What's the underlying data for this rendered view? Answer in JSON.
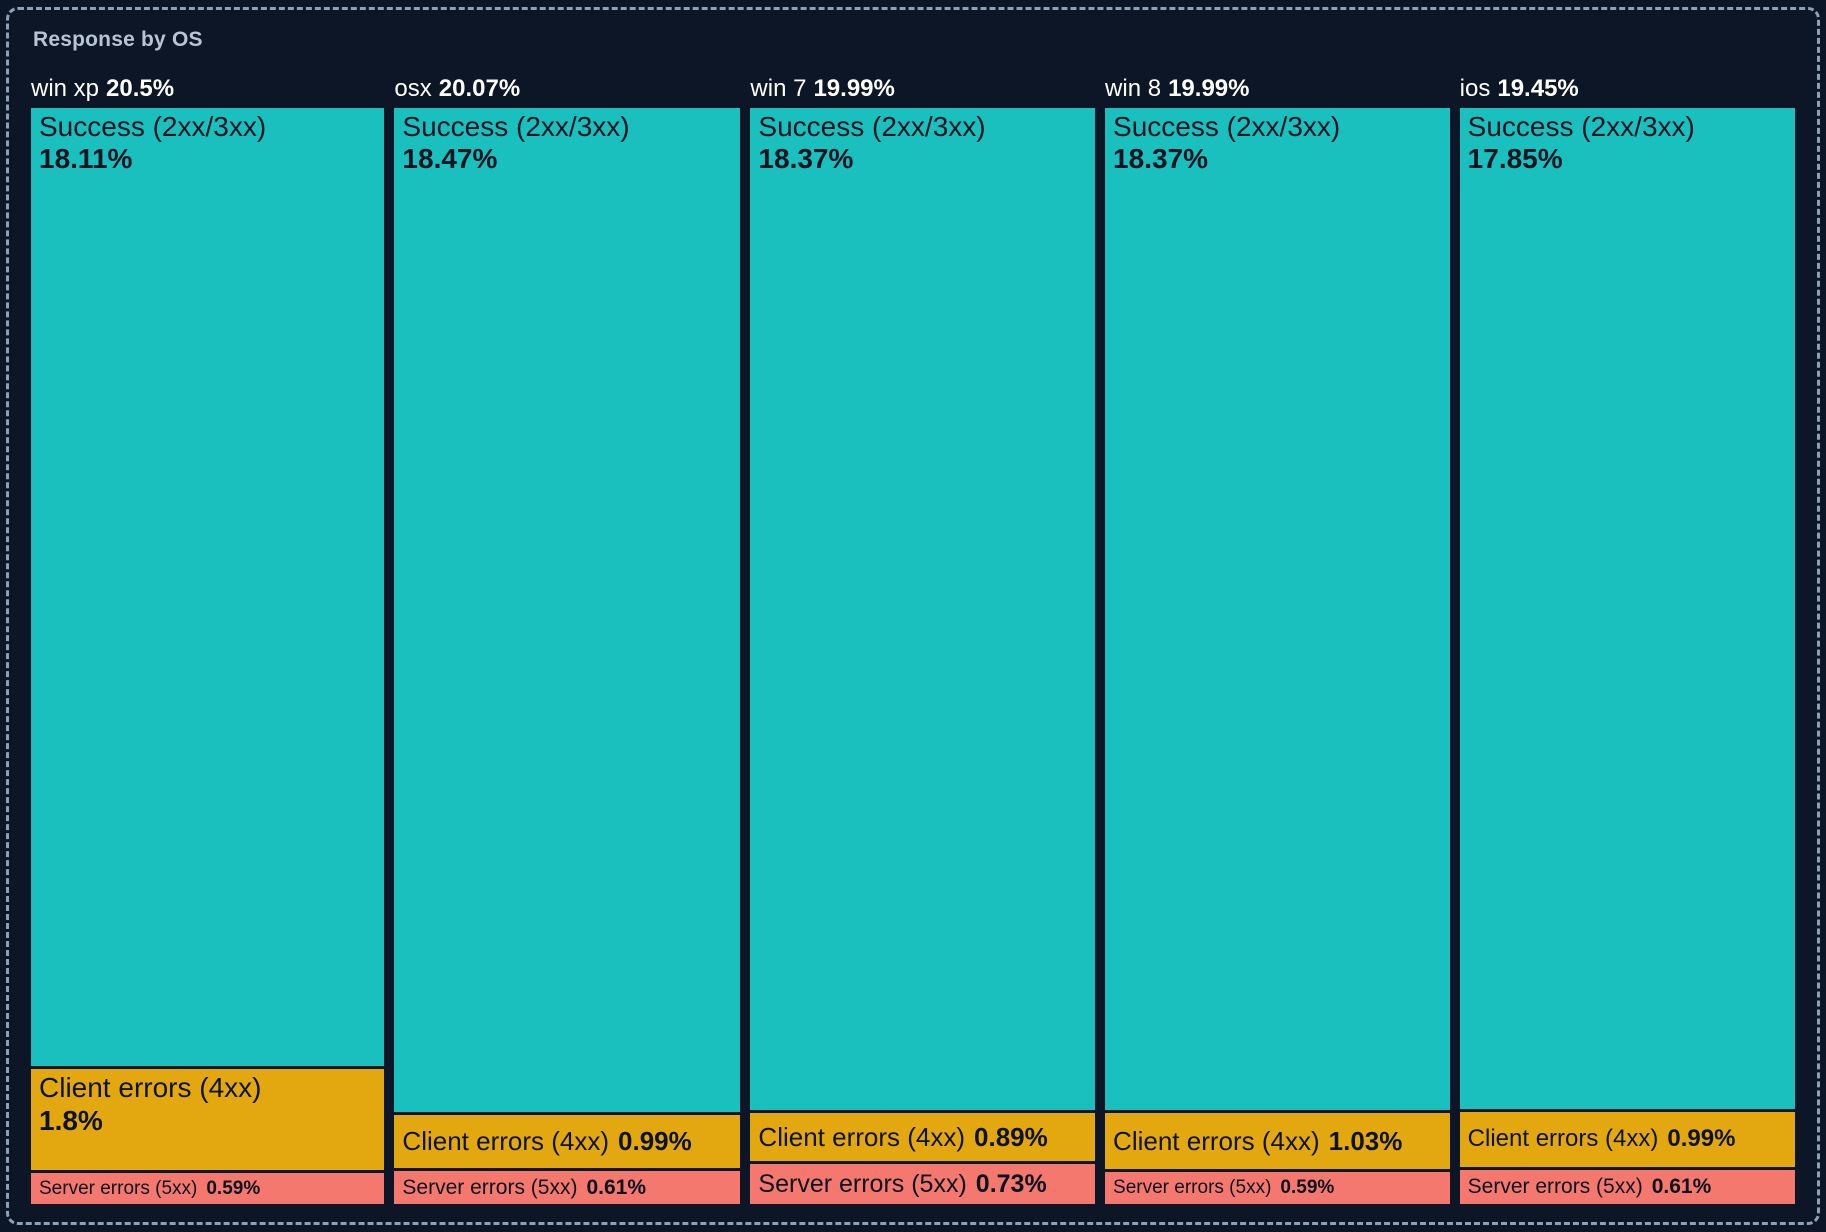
{
  "panel": {
    "title": "Response by OS"
  },
  "chart_data": {
    "type": "treemap",
    "title": "Response by OS",
    "unit": "%",
    "colors": {
      "success": "#19c0be",
      "client": "#e3a70f",
      "server": "#f4786e"
    },
    "background": "#0d1626",
    "border_color": "#8da0b6",
    "columns": [
      {
        "os": "win xp",
        "total": 20.5,
        "total_label": "20.5%",
        "segments": [
          {
            "kind": "success",
            "label": "Success (2xx/3xx)",
            "value": 18.11,
            "value_label": "18.11%"
          },
          {
            "kind": "client",
            "label": "Client errors (4xx)",
            "value": 1.8,
            "value_label": "1.8%"
          },
          {
            "kind": "server",
            "label": "Server errors (5xx)",
            "value": 0.59,
            "value_label": "0.59%"
          }
        ]
      },
      {
        "os": "osx",
        "total": 20.07,
        "total_label": "20.07%",
        "segments": [
          {
            "kind": "success",
            "label": "Success (2xx/3xx)",
            "value": 18.47,
            "value_label": "18.47%"
          },
          {
            "kind": "client",
            "label": "Client errors (4xx)",
            "value": 0.99,
            "value_label": "0.99%"
          },
          {
            "kind": "server",
            "label": "Server errors (5xx)",
            "value": 0.61,
            "value_label": "0.61%"
          }
        ]
      },
      {
        "os": "win 7",
        "total": 19.99,
        "total_label": "19.99%",
        "segments": [
          {
            "kind": "success",
            "label": "Success (2xx/3xx)",
            "value": 18.37,
            "value_label": "18.37%"
          },
          {
            "kind": "client",
            "label": "Client errors (4xx)",
            "value": 0.89,
            "value_label": "0.89%"
          },
          {
            "kind": "server",
            "label": "Server errors (5xx)",
            "value": 0.73,
            "value_label": "0.73%"
          }
        ]
      },
      {
        "os": "win 8",
        "total": 19.99,
        "total_label": "19.99%",
        "segments": [
          {
            "kind": "success",
            "label": "Success (2xx/3xx)",
            "value": 18.37,
            "value_label": "18.37%"
          },
          {
            "kind": "client",
            "label": "Client errors (4xx)",
            "value": 1.03,
            "value_label": "1.03%"
          },
          {
            "kind": "server",
            "label": "Server errors (5xx)",
            "value": 0.59,
            "value_label": "0.59%"
          }
        ]
      },
      {
        "os": "ios",
        "total": 19.45,
        "total_label": "19.45%",
        "segments": [
          {
            "kind": "success",
            "label": "Success (2xx/3xx)",
            "value": 17.85,
            "value_label": "17.85%"
          },
          {
            "kind": "client",
            "label": "Client errors (4xx)",
            "value": 0.99,
            "value_label": "0.99%"
          },
          {
            "kind": "server",
            "label": "Server errors (5xx)",
            "value": 0.61,
            "value_label": "0.61%"
          }
        ]
      }
    ]
  }
}
